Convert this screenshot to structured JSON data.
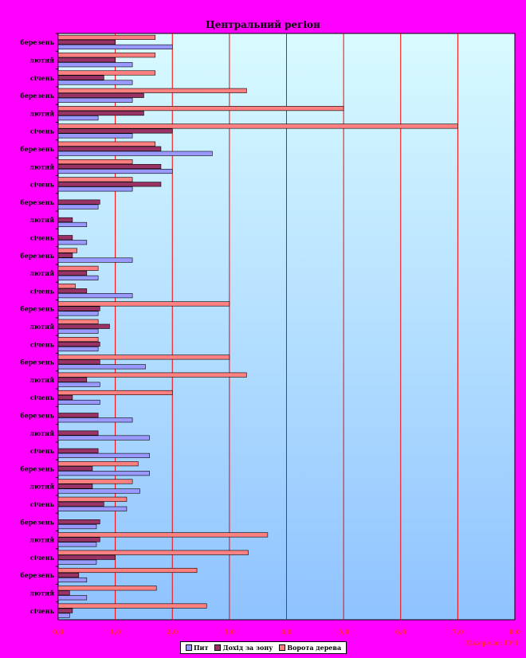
{
  "chart_data": {
    "type": "bar",
    "orientation": "horizontal",
    "title": "Центральний регіон",
    "source": "Джерело: ГУЗ",
    "xlim": [
      0,
      8
    ],
    "xticks": [
      "0,0",
      "1,0",
      "2,0",
      "3,0",
      "4,0",
      "5,0",
      "6,0",
      "7,0",
      "8,0"
    ],
    "grid": true,
    "legend_position": "bottom",
    "categories": [
      "березень",
      "лютий",
      "січень",
      "березень",
      "лютий",
      "січень",
      "березень",
      "лютий",
      "січень",
      "березень",
      "лютий",
      "січень",
      "березень",
      "лютий",
      "січень",
      "березень",
      "лютий",
      "січень",
      "березень",
      "лютий",
      "січень",
      "березень",
      "лютий",
      "січень",
      "березень",
      "лютий",
      "січень",
      "березень",
      "лютий",
      "січень",
      "березень",
      "лютий",
      "січень"
    ],
    "series": [
      {
        "name": "Пит",
        "color": "#9999ff",
        "values": [
          2.0,
          1.3,
          1.3,
          1.3,
          0.7,
          1.3,
          2.7,
          2.0,
          1.3,
          0.7,
          0.5,
          0.5,
          1.3,
          0.7,
          1.3,
          0.7,
          0.7,
          0.7,
          1.53,
          0.73,
          0.73,
          1.3,
          1.6,
          1.6,
          1.6,
          1.43,
          1.2,
          0.67,
          0.67,
          0.67,
          0.5,
          0.5,
          0.2
        ]
      },
      {
        "name": "Дохід за зону",
        "color": "#993366",
        "values": [
          1.0,
          1.0,
          0.8,
          1.5,
          1.5,
          2.0,
          1.8,
          1.8,
          1.8,
          0.73,
          0.25,
          0.25,
          0.25,
          0.5,
          0.5,
          0.73,
          0.9,
          0.73,
          0.73,
          0.5,
          0.25,
          0.7,
          0.7,
          0.7,
          0.6,
          0.6,
          0.8,
          0.73,
          0.73,
          1.0,
          0.36,
          0.2,
          0.25
        ]
      },
      {
        "name": "Ворота дерева",
        "color": "#ff8080",
        "values": [
          1.7,
          1.7,
          1.7,
          3.3,
          5.0,
          7.0,
          1.7,
          1.3,
          1.3,
          0.0,
          0.0,
          0.0,
          0.33,
          0.7,
          0.3,
          3.0,
          0.7,
          0.7,
          3.0,
          3.3,
          2.0,
          0.0,
          0.0,
          0.0,
          1.4,
          1.3,
          1.2,
          0.0,
          3.67,
          3.33,
          2.43,
          1.72,
          2.6
        ]
      }
    ]
  }
}
